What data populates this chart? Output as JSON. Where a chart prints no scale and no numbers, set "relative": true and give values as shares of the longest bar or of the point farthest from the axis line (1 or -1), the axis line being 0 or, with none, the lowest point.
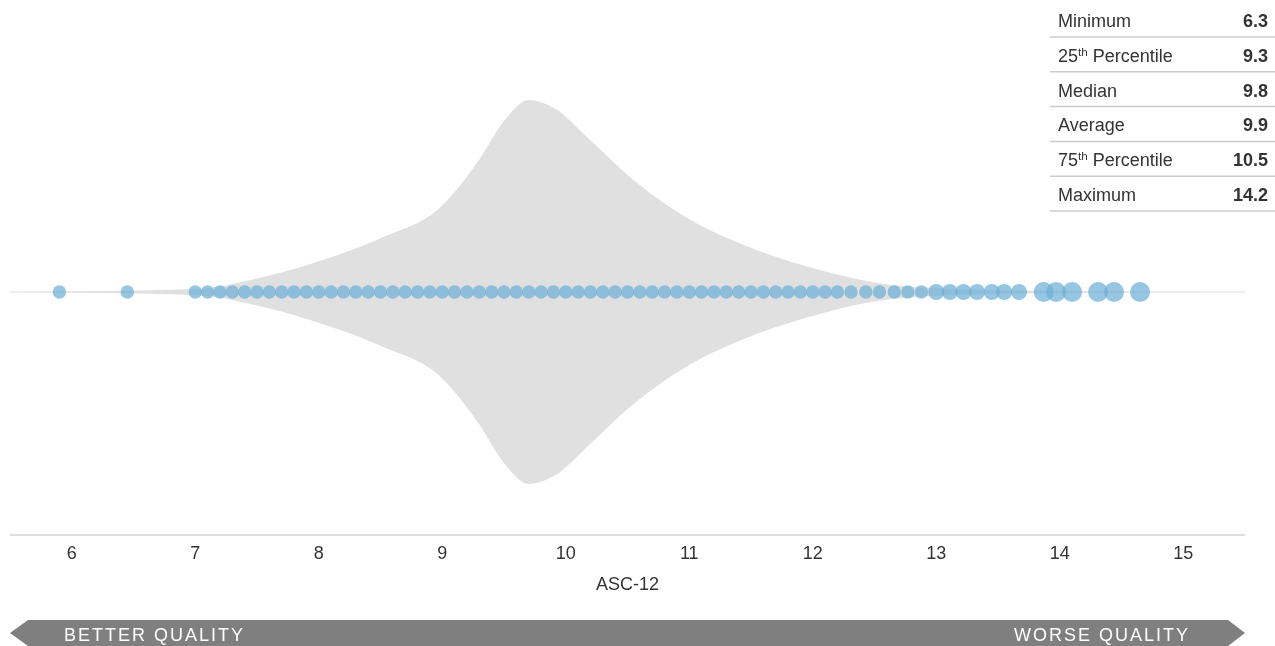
{
  "chart_data": {
    "type": "scatter",
    "xlabel": "ASC-12",
    "relative": true,
    "xlim": [
      5.5,
      15.5
    ],
    "xticks": [
      6,
      7,
      8,
      9,
      10,
      11,
      12,
      13,
      14,
      15
    ],
    "series": [
      {
        "type": "area",
        "color": "#e0e0e0",
        "x": [
          5.6,
          7.0,
          7.5,
          8.0,
          8.5,
          9.0,
          9.3,
          9.5,
          9.7,
          9.9,
          10.2,
          10.5,
          11.0,
          11.5,
          12.0,
          12.5,
          13.0,
          14.0,
          15.2
        ],
        "values": [
          0,
          0.015,
          0.07,
          0.16,
          0.28,
          0.45,
          0.69,
          0.89,
          1.0,
          0.96,
          0.79,
          0.61,
          0.38,
          0.23,
          0.125,
          0.05,
          0.02,
          0.005,
          0
        ]
      },
      {
        "type": "bubble",
        "color": "#6baed6",
        "x": [
          5.9,
          6.45,
          7.0,
          7.1,
          7.2,
          7.3,
          7.4,
          7.5,
          7.6,
          7.7,
          7.8,
          7.9,
          8.0,
          8.1,
          8.2,
          8.3,
          8.4,
          8.5,
          8.6,
          8.7,
          8.8,
          8.9,
          9.0,
          9.1,
          9.2,
          9.3,
          9.4,
          9.5,
          9.6,
          9.7,
          9.8,
          9.9,
          10.0,
          10.1,
          10.2,
          10.3,
          10.4,
          10.5,
          10.6,
          10.7,
          10.8,
          10.9,
          11.0,
          11.1,
          11.2,
          11.3,
          11.4,
          11.5,
          11.6,
          11.7,
          11.8,
          11.9,
          12.0,
          12.1,
          12.2,
          12.31,
          12.43,
          12.54,
          12.66,
          12.77,
          12.88,
          13.0,
          13.11,
          13.22,
          13.33,
          13.45,
          13.55,
          13.67,
          13.87,
          13.97,
          14.1,
          14.31,
          14.44,
          14.65
        ],
        "values": [
          0,
          0,
          0,
          0,
          0,
          0,
          0,
          0,
          0,
          0,
          0,
          0,
          0,
          0,
          0,
          0,
          0,
          0,
          0,
          0,
          0,
          0,
          0,
          0,
          0,
          0,
          0,
          0,
          0,
          0,
          0,
          0,
          0,
          0,
          0,
          0,
          0,
          0,
          0,
          0,
          0,
          0,
          0,
          0,
          0,
          0,
          0,
          0,
          0,
          0,
          0,
          0,
          0,
          0,
          0,
          0,
          0,
          0,
          0,
          0,
          0,
          0,
          0,
          0,
          0,
          0,
          0,
          0,
          0,
          0,
          0,
          0,
          0,
          0
        ],
        "sizes": [
          0.45,
          0.45,
          0.45,
          0.45,
          0.45,
          0.45,
          0.45,
          0.45,
          0.45,
          0.45,
          0.45,
          0.45,
          0.45,
          0.45,
          0.45,
          0.45,
          0.45,
          0.45,
          0.45,
          0.45,
          0.45,
          0.45,
          0.45,
          0.45,
          0.45,
          0.45,
          0.45,
          0.45,
          0.45,
          0.45,
          0.45,
          0.45,
          0.45,
          0.45,
          0.45,
          0.45,
          0.45,
          0.45,
          0.45,
          0.45,
          0.45,
          0.45,
          0.45,
          0.45,
          0.45,
          0.45,
          0.45,
          0.45,
          0.45,
          0.45,
          0.45,
          0.45,
          0.45,
          0.45,
          0.45,
          0.45,
          0.45,
          0.45,
          0.45,
          0.45,
          0.45,
          0.65,
          0.65,
          0.65,
          0.65,
          0.65,
          0.65,
          0.65,
          1,
          1,
          1,
          1,
          1,
          1
        ]
      }
    ],
    "annotations": [
      "Minimum",
      "6.3",
      "25$^{th}$ Percentile",
      "9.3",
      "Median",
      "9.8",
      "Average",
      "9.9",
      "75$^{th}$ Percentile",
      "10.5",
      "Maximum",
      "14.2",
      "BETTER QUALITY",
      "WORSE QUALITY"
    ]
  }
}
